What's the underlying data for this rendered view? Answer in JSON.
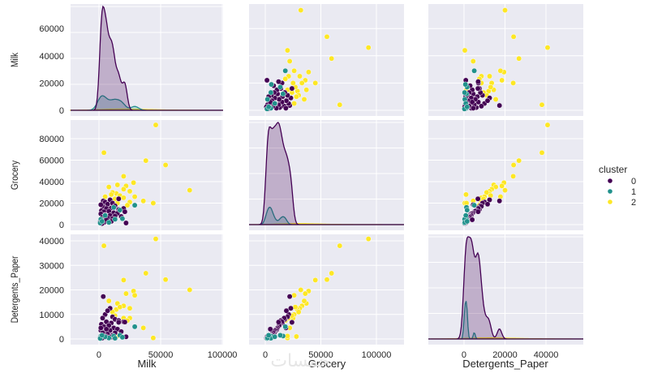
{
  "chart_data": {
    "type": "scatter",
    "title": "",
    "variables": [
      "Milk",
      "Grocery",
      "Detergents_Paper"
    ],
    "axis_labels": {
      "Milk": "Milk",
      "Grocery": "Grocery",
      "Detergents_Paper": "Detergents_Paper"
    },
    "x_ticks": {
      "Milk": [
        0,
        50000,
        100000
      ],
      "Grocery": [
        0,
        50000,
        100000
      ],
      "Detergents_Paper": [
        0,
        20000,
        40000
      ]
    },
    "y_ticks": {
      "Milk": [
        0,
        20000,
        40000,
        60000
      ],
      "Grocery": [
        0,
        20000,
        40000,
        60000,
        80000
      ],
      "Detergents_Paper": [
        0,
        10000,
        20000,
        30000,
        40000
      ]
    },
    "x_ranges": {
      "Milk": [
        -23000,
        100600
      ],
      "Grocery": [
        -14600,
        124800
      ],
      "Detergents_Paper": [
        -17400,
        58200
      ]
    },
    "y_ranges": {
      "Milk": [
        -4200,
        78000
      ],
      "Grocery": [
        -5300,
        97400
      ],
      "Detergents_Paper": [
        -2300,
        42650
      ]
    },
    "diagonal": "kde",
    "grid": true,
    "legend": {
      "title": "cluster",
      "placement": "right",
      "entries": [
        "0",
        "1",
        "2"
      ]
    },
    "hue_colors": {
      "0": "#440154",
      "1": "#21918c",
      "2": "#fde725"
    },
    "kde_peaks": {
      "Milk": {
        "0": 1.0,
        "1": 0.14,
        "2": 0.012
      },
      "Grocery": {
        "0": 1.0,
        "1": 0.17,
        "2": 0.01
      },
      "Detergents_Paper": {
        "0": 1.0,
        "1": 0.37,
        "2": 0.01
      }
    },
    "points": [
      {
        "Milk": 73500,
        "Grocery": 32000,
        "Detergents_Paper": 20000,
        "cluster": 2
      },
      {
        "Milk": 54000,
        "Grocery": 55500,
        "Detergents_Paper": 24200,
        "cluster": 2
      },
      {
        "Milk": 46000,
        "Grocery": 92800,
        "Detergents_Paper": 40800,
        "cluster": 2
      },
      {
        "Milk": 38000,
        "Grocery": 59600,
        "Detergents_Paper": 26800,
        "cluster": 2
      },
      {
        "Milk": 4000,
        "Grocery": 67000,
        "Detergents_Paper": 38000,
        "cluster": 2
      },
      {
        "Milk": 44000,
        "Grocery": 20000,
        "Detergents_Paper": 400,
        "cluster": 2
      },
      {
        "Milk": 36000,
        "Grocery": 22000,
        "Detergents_Paper": 4500,
        "cluster": 2
      },
      {
        "Milk": 20000,
        "Grocery": 45000,
        "Detergents_Paper": 24000,
        "cluster": 2
      },
      {
        "Milk": 28000,
        "Grocery": 39000,
        "Detergents_Paper": 19500,
        "cluster": 2
      },
      {
        "Milk": 22000,
        "Grocery": 36000,
        "Detergents_Paper": 18500,
        "cluster": 2
      },
      {
        "Milk": 29000,
        "Grocery": 26000,
        "Detergents_Paper": 17800,
        "cluster": 2
      },
      {
        "Milk": 15000,
        "Grocery": 37000,
        "Detergents_Paper": 14500,
        "cluster": 2
      },
      {
        "Milk": 8000,
        "Grocery": 35000,
        "Detergents_Paper": 15500,
        "cluster": 2
      },
      {
        "Milk": 20000,
        "Grocery": 33000,
        "Detergents_Paper": 13500,
        "cluster": 2
      },
      {
        "Milk": 25000,
        "Grocery": 31000,
        "Detergents_Paper": 12500,
        "cluster": 2
      },
      {
        "Milk": 14000,
        "Grocery": 29000,
        "Detergents_Paper": 12000,
        "cluster": 2
      },
      {
        "Milk": 17000,
        "Grocery": 27000,
        "Detergents_Paper": 13000,
        "cluster": 2
      },
      {
        "Milk": 11000,
        "Grocery": 30000,
        "Detergents_Paper": 11000,
        "cluster": 2
      },
      {
        "Milk": 20000,
        "Grocery": 25000,
        "Detergents_Paper": 8500,
        "cluster": 2
      },
      {
        "Milk": 25000,
        "Grocery": 21000,
        "Detergents_Paper": 8500,
        "cluster": 2
      },
      {
        "Milk": 5000,
        "Grocery": 26000,
        "Detergents_Paper": 10000,
        "cluster": 2
      },
      {
        "Milk": 13000,
        "Grocery": 24000,
        "Detergents_Paper": 9500,
        "cluster": 2
      },
      {
        "Milk": 23000,
        "Grocery": 18000,
        "Detergents_Paper": 7500,
        "cluster": 2
      },
      {
        "Milk": 10000,
        "Grocery": 28000,
        "Detergents_Paper": 1000,
        "cluster": 2
      },
      {
        "Milk": 15000,
        "Grocery": 20000,
        "Detergents_Paper": 1200,
        "cluster": 2
      },
      {
        "Milk": 3500,
        "Grocery": 22000,
        "Detergents_Paper": 17300,
        "cluster": 0
      },
      {
        "Milk": 5000,
        "Grocery": 21000,
        "Detergents_Paper": 10000,
        "cluster": 0
      },
      {
        "Milk": 9000,
        "Grocery": 23000,
        "Detergents_Paper": 12500,
        "cluster": 0
      },
      {
        "Milk": 7000,
        "Grocery": 19000,
        "Detergents_Paper": 11500,
        "cluster": 0
      },
      {
        "Milk": 11000,
        "Grocery": 20000,
        "Detergents_Paper": 9000,
        "cluster": 0
      },
      {
        "Milk": 13000,
        "Grocery": 17500,
        "Detergents_Paper": 8000,
        "cluster": 0
      },
      {
        "Milk": 3000,
        "Grocery": 17000,
        "Detergents_Paper": 8500,
        "cluster": 0
      },
      {
        "Milk": 6000,
        "Grocery": 15000,
        "Detergents_Paper": 7000,
        "cluster": 0
      },
      {
        "Milk": 10000,
        "Grocery": 15500,
        "Detergents_Paper": 6500,
        "cluster": 0
      },
      {
        "Milk": 16000,
        "Grocery": 14000,
        "Detergents_Paper": 7500,
        "cluster": 0
      },
      {
        "Milk": 20000,
        "Grocery": 15000,
        "Detergents_Paper": 7000,
        "cluster": 0
      },
      {
        "Milk": 2000,
        "Grocery": 13000,
        "Detergents_Paper": 6000,
        "cluster": 0
      },
      {
        "Milk": 4000,
        "Grocery": 12000,
        "Detergents_Paper": 5000,
        "cluster": 0
      },
      {
        "Milk": 8000,
        "Grocery": 12500,
        "Detergents_Paper": 5500,
        "cluster": 0
      },
      {
        "Milk": 12000,
        "Grocery": 11000,
        "Detergents_Paper": 4500,
        "cluster": 0
      },
      {
        "Milk": 15000,
        "Grocery": 10500,
        "Detergents_Paper": 4000,
        "cluster": 0
      },
      {
        "Milk": 1500,
        "Grocery": 10000,
        "Detergents_Paper": 3500,
        "cluster": 0
      },
      {
        "Milk": 5000,
        "Grocery": 9000,
        "Detergents_Paper": 3000,
        "cluster": 0
      },
      {
        "Milk": 9000,
        "Grocery": 8500,
        "Detergents_Paper": 3500,
        "cluster": 0
      },
      {
        "Milk": 13000,
        "Grocery": 8000,
        "Detergents_Paper": 2500,
        "cluster": 0
      },
      {
        "Milk": 18000,
        "Grocery": 7500,
        "Detergents_Paper": 3000,
        "cluster": 0
      },
      {
        "Milk": 3000,
        "Grocery": 7000,
        "Detergents_Paper": 2500,
        "cluster": 0
      },
      {
        "Milk": 7000,
        "Grocery": 6000,
        "Detergents_Paper": 2000,
        "cluster": 0
      },
      {
        "Milk": 11000,
        "Grocery": 5500,
        "Detergents_Paper": 1500,
        "cluster": 0
      },
      {
        "Milk": 2000,
        "Grocery": 4500,
        "Detergents_Paper": 1500,
        "cluster": 0
      },
      {
        "Milk": 6000,
        "Grocery": 3500,
        "Detergents_Paper": 1000,
        "cluster": 0
      },
      {
        "Milk": 10000,
        "Grocery": 3000,
        "Detergents_Paper": 800,
        "cluster": 0
      },
      {
        "Milk": 1000,
        "Grocery": 2500,
        "Detergents_Paper": 500,
        "cluster": 0
      },
      {
        "Milk": 4000,
        "Grocery": 2000,
        "Detergents_Paper": 600,
        "cluster": 0
      },
      {
        "Milk": 22000,
        "Grocery": 1500,
        "Detergents_Paper": 900,
        "cluster": 0
      },
      {
        "Milk": 16000,
        "Grocery": 24000,
        "Detergents_Paper": 6800,
        "cluster": 0
      },
      {
        "Milk": 21000,
        "Grocery": 12000,
        "Detergents_Paper": 6900,
        "cluster": 0
      },
      {
        "Milk": 1500,
        "Grocery": 18500,
        "Detergents_Paper": 4500,
        "cluster": 0
      },
      {
        "Milk": 6000,
        "Grocery": 4500,
        "Detergents_Paper": 4000,
        "cluster": 0
      },
      {
        "Milk": 2500,
        "Grocery": 1000,
        "Detergents_Paper": 300,
        "cluster": 0
      },
      {
        "Milk": 29000,
        "Grocery": 18000,
        "Detergents_Paper": 5000,
        "cluster": 1
      },
      {
        "Milk": 12000,
        "Grocery": 16000,
        "Detergents_Paper": 1200,
        "cluster": 1
      },
      {
        "Milk": 17000,
        "Grocery": 13500,
        "Detergents_Paper": 1500,
        "cluster": 1
      },
      {
        "Milk": 19000,
        "Grocery": 5500,
        "Detergents_Paper": 700,
        "cluster": 1
      },
      {
        "Milk": 1500,
        "Grocery": 5000,
        "Detergents_Paper": 1200,
        "cluster": 1
      },
      {
        "Milk": 13000,
        "Grocery": 5000,
        "Detergents_Paper": 300,
        "cluster": 1
      },
      {
        "Milk": 1000,
        "Grocery": 1500,
        "Detergents_Paper": 200,
        "cluster": 1
      },
      {
        "Milk": 8000,
        "Grocery": 2000,
        "Detergents_Paper": 400,
        "cluster": 1
      },
      {
        "Milk": 5000,
        "Grocery": 8500,
        "Detergents_Paper": 900,
        "cluster": 1
      },
      {
        "Milk": 2500,
        "Grocery": 3000,
        "Detergents_Paper": 1500,
        "cluster": 1
      }
    ]
  },
  "watermark": "خمسات"
}
